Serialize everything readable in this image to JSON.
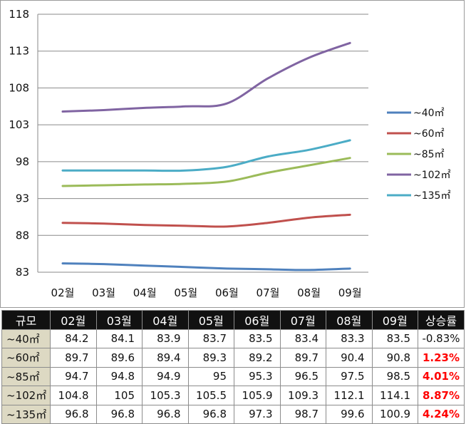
{
  "chart_data": {
    "type": "line",
    "categories": [
      "02월",
      "03월",
      "04월",
      "05월",
      "06월",
      "07월",
      "08월",
      "09월"
    ],
    "series": [
      {
        "name": "~40㎡",
        "color": "#4f81bd",
        "values": [
          84.2,
          84.1,
          83.9,
          83.7,
          83.5,
          83.4,
          83.3,
          83.5
        ]
      },
      {
        "name": "~60㎡",
        "color": "#c0504d",
        "values": [
          89.7,
          89.6,
          89.4,
          89.3,
          89.2,
          89.7,
          90.4,
          90.8
        ]
      },
      {
        "name": "~85㎡",
        "color": "#9bbb59",
        "values": [
          94.7,
          94.8,
          94.9,
          95,
          95.3,
          96.5,
          97.5,
          98.5
        ]
      },
      {
        "name": "~102㎡",
        "color": "#8064a2",
        "values": [
          104.8,
          105,
          105.3,
          105.5,
          105.9,
          109.3,
          112.1,
          114.1
        ]
      },
      {
        "name": "~135㎡",
        "color": "#4bacc6",
        "values": [
          96.8,
          96.8,
          96.8,
          96.8,
          97.3,
          98.7,
          99.6,
          100.9
        ]
      }
    ],
    "yticks": [
      83,
      88,
      93,
      98,
      103,
      108,
      113,
      118
    ],
    "ylim": [
      83,
      118
    ],
    "grid": true,
    "legend_position": "right"
  },
  "table": {
    "headers": [
      "규모",
      "02월",
      "03월",
      "04월",
      "05월",
      "06월",
      "07월",
      "08월",
      "09월",
      "상승률"
    ],
    "rows": [
      {
        "label": "~40㎡",
        "values": [
          "84.2",
          "84.1",
          "83.9",
          "83.7",
          "83.5",
          "83.4",
          "83.3",
          "83.5"
        ],
        "rate": "-0.83%",
        "rate_positive": false
      },
      {
        "label": "~60㎡",
        "values": [
          "89.7",
          "89.6",
          "89.4",
          "89.3",
          "89.2",
          "89.7",
          "90.4",
          "90.8"
        ],
        "rate": "1.23%",
        "rate_positive": true
      },
      {
        "label": "~85㎡",
        "values": [
          "94.7",
          "94.8",
          "94.9",
          "95",
          "95.3",
          "96.5",
          "97.5",
          "98.5"
        ],
        "rate": "4.01%",
        "rate_positive": true
      },
      {
        "label": "~102㎡",
        "values": [
          "104.8",
          "105",
          "105.3",
          "105.5",
          "105.9",
          "109.3",
          "112.1",
          "114.1"
        ],
        "rate": "8.87%",
        "rate_positive": true
      },
      {
        "label": "~135㎡",
        "values": [
          "96.8",
          "96.8",
          "96.8",
          "96.8",
          "97.3",
          "98.7",
          "99.6",
          "100.9"
        ],
        "rate": "4.24%",
        "rate_positive": true
      }
    ]
  },
  "colors": {
    "header_bg": "#111111",
    "row_label_bg": "#ddd9c3",
    "rate_positive": "#ff0000"
  }
}
